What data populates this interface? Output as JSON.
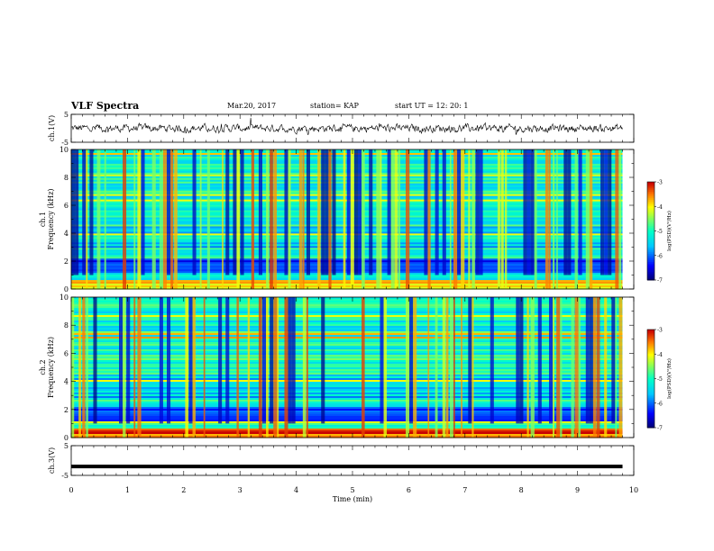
{
  "header": {
    "title": "VLF Spectra",
    "date": "Mar.20, 2017",
    "station": "station= KAP",
    "start": "start  UT  =   12: 20: 1"
  },
  "chart_data": [
    {
      "type": "line",
      "panel": "ch1-waveform",
      "ylabel": "ch.1(V)",
      "ylim": [
        -5,
        5
      ],
      "yticks": [
        5,
        -5
      ],
      "xlim": [
        0,
        10
      ],
      "note_values": "noisy waveform fluctuating roughly between -2 and 2 V across 0-9.8 min"
    },
    {
      "type": "heatmap",
      "panel": "ch1-spectrogram",
      "ylabel": "ch.1\nFrequency (kHz)",
      "ylim": [
        0,
        10
      ],
      "yticks": [
        0,
        2,
        4,
        6,
        8,
        10
      ],
      "xlim": [
        0,
        10
      ],
      "colorbar": {
        "label": "log(PSD)(V²/Hz)",
        "range": [
          -7,
          -3
        ],
        "ticks": [
          -3,
          -4,
          -5,
          -6,
          -7
        ]
      }
    },
    {
      "type": "heatmap",
      "panel": "ch2-spectrogram",
      "ylabel": "ch.2\nFrequency (kHz)",
      "ylim": [
        0,
        10
      ],
      "yticks": [
        0,
        2,
        4,
        6,
        8,
        10
      ],
      "xlim": [
        0,
        10
      ],
      "colorbar": {
        "label": "log(PSD)(V²/Hz)",
        "range": [
          -7,
          -3
        ],
        "ticks": [
          -3,
          -4,
          -5,
          -6,
          -7
        ]
      }
    },
    {
      "type": "line",
      "panel": "ch3-waveform",
      "ylabel": "ch.3(V)",
      "ylim": [
        -5,
        5
      ],
      "yticks": [
        5,
        -5
      ],
      "xlim": [
        0,
        10
      ],
      "xlabel": "Time (min)",
      "xticks": [
        0,
        1,
        2,
        3,
        4,
        5,
        6,
        7,
        8,
        9,
        10
      ],
      "constant_value": -2
    }
  ],
  "colors": {
    "dark": "#00007f",
    "blue": "#0000ff",
    "cyan": "#00ffff",
    "green": "#7fff7f",
    "yellow": "#ffff00",
    "red": "#ff0000"
  }
}
